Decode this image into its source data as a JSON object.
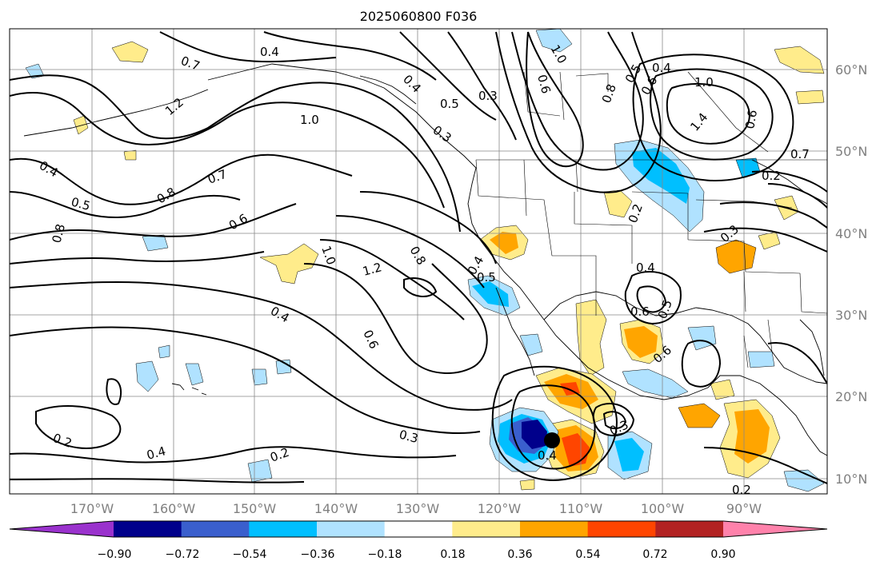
{
  "title": "2025060800 F036",
  "lat_labels": [
    "60°N",
    "50°N",
    "40°N",
    "30°N",
    "20°N",
    "10°N"
  ],
  "lon_labels": [
    "170°W",
    "160°W",
    "150°W",
    "140°W",
    "130°W",
    "120°W",
    "110°W",
    "100°W",
    "90°W"
  ],
  "colorbar": {
    "colors": [
      "#9a32cd",
      "#00008b",
      "#3a5fcd",
      "#00bfff",
      "#b0e2ff",
      "#ffffff",
      "#ffec8b",
      "#ffa500",
      "#ff4500",
      "#b22222",
      "#ff82ab"
    ],
    "tick_labels": [
      "−0.90",
      "−0.72",
      "−0.54",
      "−0.36",
      "−0.18",
      "0.18",
      "0.36",
      "0.54",
      "0.72",
      "0.90"
    ]
  },
  "contour_labels": [
    "0.4",
    "0.4",
    "1.0",
    "0.6",
    "0.3",
    "0.5",
    "1.0",
    "0.6",
    "0.8",
    "0.5",
    "0.4",
    "1.0",
    "0.7",
    "0.2",
    "1.4",
    "0.3",
    "1.2",
    "0.7",
    "0.4",
    "0.5",
    "0.8",
    "0.8",
    "0.7",
    "0.6",
    "1.2",
    "0.8",
    "1.0",
    "0.4",
    "0.6",
    "0.2",
    "0.4",
    "0.3",
    "0.4",
    "0.5",
    "0.2",
    "0.3",
    "0.2",
    "0.3",
    "0.4",
    "0.5",
    "0.6",
    "0.6",
    "0.2",
    "0.6",
    "0.4"
  ],
  "colors": {
    "shading_positive": "#ffec8b",
    "shading_negative": "#b0e2ff",
    "cyclone_marker": "#000000"
  }
}
